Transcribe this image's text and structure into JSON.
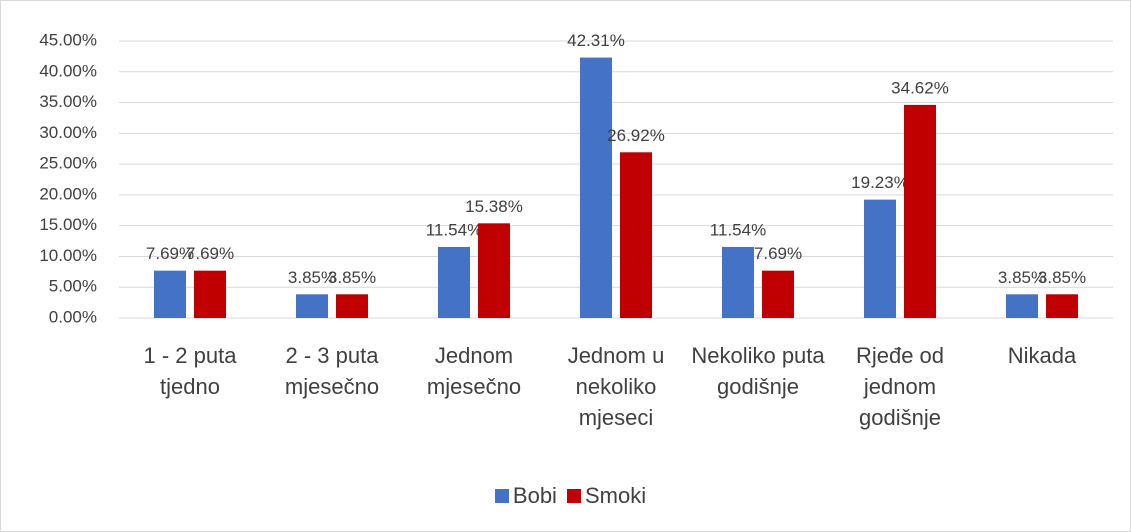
{
  "chart_data": {
    "type": "bar",
    "categories": [
      "1 - 2 puta tjedno",
      "2 - 3 puta mjesečno",
      "Jednom mjesečno",
      "Jednom u nekoliko mjeseci",
      "Nekoliko puta godišnje",
      "Rjeđe od jednom godišnje",
      "Nikada"
    ],
    "series": [
      {
        "name": "Bobi",
        "color": "#4472c4",
        "values": [
          7.69,
          3.85,
          11.54,
          42.31,
          11.54,
          19.23,
          3.85
        ],
        "value_labels": [
          "7.69%",
          "3.85%",
          "11.54%",
          "42.31%",
          "11.54%",
          "19.23%",
          "3.85%"
        ]
      },
      {
        "name": "Smoki",
        "color": "#c00000",
        "values": [
          7.69,
          3.85,
          15.38,
          26.92,
          7.69,
          34.62,
          3.85
        ],
        "value_labels": [
          "7.69%",
          "3.85%",
          "15.38%",
          "26.92%",
          "7.69%",
          "34.62%",
          "3.85%"
        ]
      }
    ],
    "ylim": [
      0,
      45
    ],
    "yticks": [
      {
        "value": 0,
        "label": "0.00%"
      },
      {
        "value": 5,
        "label": "5.00%"
      },
      {
        "value": 10,
        "label": "10.00%"
      },
      {
        "value": 15,
        "label": "15.00%"
      },
      {
        "value": 20,
        "label": "20.00%"
      },
      {
        "value": 25,
        "label": "25.00%"
      },
      {
        "value": 30,
        "label": "30.00%"
      },
      {
        "value": 35,
        "label": "35.00%"
      },
      {
        "value": 40,
        "label": "40.00%"
      },
      {
        "value": 45,
        "label": "45.00%"
      }
    ],
    "grid": true,
    "legend": "bottom"
  }
}
